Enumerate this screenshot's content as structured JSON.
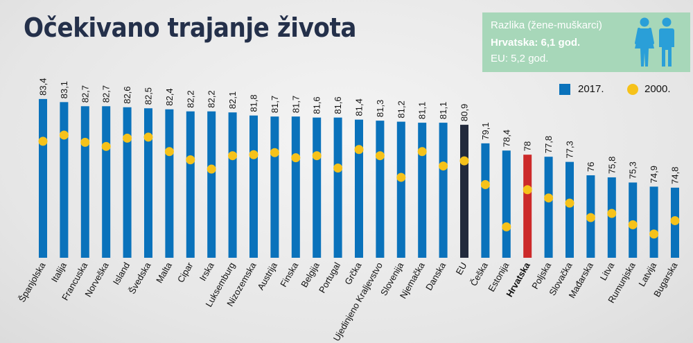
{
  "title": "Očekivano trajanje života",
  "info": {
    "line1": "Razlika (žene-muškarci)",
    "line2": "Hrvatska: 6,1 god.",
    "line3": "EU: 5,2 god.",
    "icon": "man-woman-icon",
    "bg_color": "#a7d7b9"
  },
  "legend": {
    "items": [
      {
        "label": "2017.",
        "color": "#0a72bb",
        "shape": "square"
      },
      {
        "label": "2000.",
        "color": "#f6c21a",
        "shape": "circle"
      }
    ]
  },
  "chart_data": {
    "type": "bar",
    "title": "Očekivano trajanje života",
    "categories": [
      "Španjolska",
      "Italija",
      "Francuska",
      "Norveška",
      "Island",
      "Švedska",
      "Malta",
      "Cipar",
      "Irska",
      "Luksemburg",
      "Nizozemska",
      "Austrija",
      "Finska",
      "Belgija",
      "Portugal",
      "Grčka",
      "Ujedinjeno Kraljevstvo",
      "Slovenija",
      "Njemačka",
      "Danska",
      "EU",
      "Češka",
      "Estonija",
      "Hrvatska",
      "Poljska",
      "Slovačka",
      "Mađarska",
      "Litva",
      "Rumunjska",
      "Latvija",
      "Bugarska"
    ],
    "series": [
      {
        "name": "2017.",
        "values": [
          83.4,
          83.1,
          82.7,
          82.7,
          82.6,
          82.5,
          82.4,
          82.2,
          82.2,
          82.1,
          81.8,
          81.7,
          81.7,
          81.6,
          81.6,
          81.4,
          81.3,
          81.2,
          81.1,
          81.1,
          80.9,
          79.1,
          78.4,
          78,
          77.8,
          77.3,
          76,
          75.8,
          75.3,
          74.9,
          74.8
        ],
        "labels": [
          "83,4",
          "83,1",
          "82,7",
          "82,7",
          "82,6",
          "82,5",
          "82,4",
          "82,2",
          "82,2",
          "82,1",
          "81,8",
          "81,7",
          "81,7",
          "81,6",
          "81,6",
          "81,4",
          "81,3",
          "81,2",
          "81,1",
          "81,1",
          "80,9",
          "79,1",
          "78,4",
          "78",
          "77,8",
          "77,3",
          "76",
          "75,8",
          "75,3",
          "74,9",
          "74,8"
        ]
      },
      {
        "name": "2000.",
        "values": [
          79.3,
          79.9,
          79.2,
          78.8,
          79.6,
          79.7,
          78.3,
          77.5,
          76.6,
          77.9,
          78.0,
          78.2,
          77.7,
          77.9,
          76.7,
          78.5,
          77.9,
          75.8,
          78.3,
          76.9,
          77.4,
          75.1,
          71.0,
          74.6,
          73.8,
          73.3,
          71.9,
          72.3,
          71.2,
          70.3,
          71.6
        ]
      }
    ],
    "highlight": {
      "EU": "#222a3c",
      "Hrvatska": "#cc2a2a"
    },
    "bar_color": "#0a72bb",
    "dot_color": "#f6c21a",
    "bold_labels": [
      "Hrvatska"
    ],
    "ylim": [
      68,
      84.4
    ],
    "grid": false
  }
}
